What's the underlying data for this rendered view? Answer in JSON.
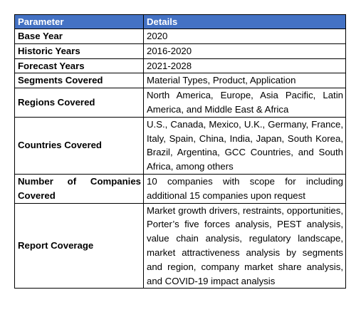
{
  "header": {
    "col1": "Parameter",
    "col2": "Details"
  },
  "rows": [
    {
      "param": "Base Year",
      "details": "2020"
    },
    {
      "param": "Historic Years",
      "details": "2016-2020"
    },
    {
      "param": "Forecast Years",
      "details": "2021-2028"
    },
    {
      "param": "Segments Covered",
      "details": "Material Types, Product, Application"
    },
    {
      "param": "Regions Covered",
      "details": "North America, Europe, Asia Pacific, Latin America, and Middle East & Africa"
    },
    {
      "param": "Countries Covered",
      "details": "U.S., Canada, Mexico, U.K., Germany, France, Italy, Spain, China, India, Japan, South Korea, Brazil, Argentina, GCC Countries, and South Africa, among others"
    },
    {
      "param": "Number of Companies Covered",
      "details": "10 companies with scope for including additional 15 companies upon request"
    },
    {
      "param": "Report Coverage",
      "details": "Market growth drivers, restraints, opportunities, Porter’s five forces analysis, PEST analysis, value chain analysis, regulatory landscape, market attractiveness analysis by segments and region, company market share analysis, and COVID-19 impact analysis"
    }
  ],
  "colors": {
    "header_bg": "#4472c4",
    "header_text": "#ffffff",
    "border": "#000000"
  }
}
